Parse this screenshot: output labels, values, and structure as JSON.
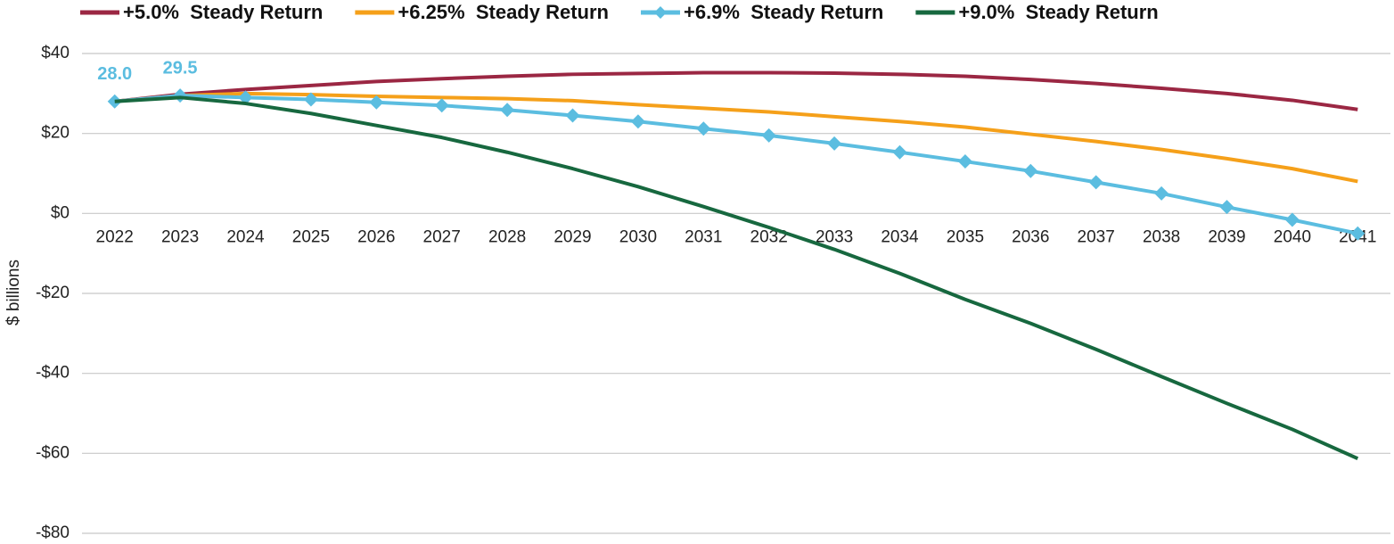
{
  "chart_data": {
    "type": "line",
    "y_label": "$ billions",
    "categories": [
      "2022",
      "2023",
      "2024",
      "2025",
      "2026",
      "2027",
      "2028",
      "2029",
      "2030",
      "2031",
      "2032",
      "2033",
      "2034",
      "2035",
      "2036",
      "2037",
      "2038",
      "2039",
      "2040",
      "2041"
    ],
    "series": [
      {
        "name": "+5.0%  Steady Return",
        "color": "#9b2743",
        "values": [
          28,
          29.8,
          31,
          32,
          33,
          33.7,
          34.3,
          34.8,
          35,
          35.2,
          35.2,
          35.1,
          34.8,
          34.3,
          33.5,
          32.5,
          31.3,
          30,
          28.3,
          26
        ]
      },
      {
        "name": "+6.25%  Steady Return",
        "color": "#f5a01a",
        "values": [
          28,
          29.5,
          30,
          29.7,
          29.3,
          29,
          28.7,
          28.2,
          27.2,
          26.3,
          25.4,
          24.2,
          23,
          21.6,
          19.8,
          18,
          16,
          13.7,
          11.2,
          8
        ]
      },
      {
        "name": "+6.9%  Steady Return",
        "color": "#5bbde0",
        "marker": "diamond",
        "values": [
          28,
          29.5,
          29,
          28.5,
          27.8,
          27,
          25.9,
          24.5,
          23,
          21.2,
          19.5,
          17.5,
          15.3,
          13,
          10.6,
          7.8,
          5,
          1.6,
          -1.6,
          -5
        ],
        "value_labels": [
          "28.0",
          "29.5",
          null,
          null,
          null,
          null,
          null,
          null,
          null,
          null,
          null,
          null,
          null,
          null,
          null,
          null,
          null,
          null,
          null,
          null
        ]
      },
      {
        "name": "+9.0%  Steady Return",
        "color": "#17683f",
        "values": [
          28,
          29,
          27.5,
          25,
          22,
          19,
          15.3,
          11.2,
          6.7,
          1.7,
          -3.5,
          -9,
          -15,
          -21.5,
          -27.5,
          -34,
          -40.8,
          -47.5,
          -54,
          -61.3
        ]
      }
    ],
    "ylim": [
      -80,
      40
    ],
    "yticks": [
      {
        "value": -80,
        "label": "-$80"
      },
      {
        "value": -60,
        "label": "-$60"
      },
      {
        "value": -40,
        "label": "-$40"
      },
      {
        "value": -20,
        "label": "-$20"
      },
      {
        "value": 0,
        "label": "$0"
      },
      {
        "value": 20,
        "label": "$20"
      },
      {
        "value": 40,
        "label": "$40"
      }
    ],
    "grid": true,
    "legend": "top"
  }
}
